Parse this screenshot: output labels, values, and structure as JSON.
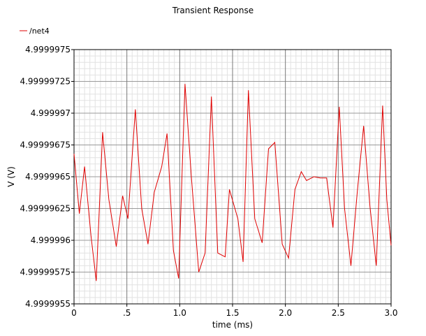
{
  "chart_data": {
    "type": "line",
    "title": "Transient Response",
    "xlabel": "time (ms)",
    "ylabel": "V (V)",
    "xlim": [
      0,
      3.0
    ],
    "ylim": [
      4.9999955,
      4.9999975
    ],
    "grid": true,
    "legend_position": "top-left",
    "x_ticks": [
      {
        "value": 0,
        "label": "0"
      },
      {
        "value": 0.5,
        "label": ".5"
      },
      {
        "value": 1.0,
        "label": "1.0"
      },
      {
        "value": 1.5,
        "label": "1.5"
      },
      {
        "value": 2.0,
        "label": "2.0"
      },
      {
        "value": 2.5,
        "label": "2.5"
      },
      {
        "value": 3.0,
        "label": "3.0"
      }
    ],
    "y_ticks": [
      {
        "value": 4.9999955,
        "label": "4.9999955"
      },
      {
        "value": 4.99999575,
        "label": "4.99999575"
      },
      {
        "value": 4.999996,
        "label": "4.999996"
      },
      {
        "value": 4.99999625,
        "label": "4.99999625"
      },
      {
        "value": 4.9999965,
        "label": "4.9999965"
      },
      {
        "value": 4.99999675,
        "label": "4.99999675"
      },
      {
        "value": 4.999997,
        "label": "4.999997"
      },
      {
        "value": 4.99999725,
        "label": "4.99999725"
      },
      {
        "value": 4.9999975,
        "label": "4.9999975"
      }
    ],
    "series": [
      {
        "name": "/net4",
        "color": "#e00000",
        "x": [
          0,
          0.05,
          0.1,
          0.16,
          0.21,
          0.27,
          0.33,
          0.4,
          0.46,
          0.51,
          0.58,
          0.64,
          0.7,
          0.76,
          0.83,
          0.88,
          0.94,
          0.99,
          1.05,
          1.11,
          1.18,
          1.24,
          1.3,
          1.36,
          1.43,
          1.47,
          1.55,
          1.6,
          1.65,
          1.71,
          1.78,
          1.84,
          1.9,
          1.97,
          2.03,
          2.09,
          2.15,
          2.2,
          2.27,
          2.33,
          2.39,
          2.45,
          2.51,
          2.56,
          2.62,
          2.68,
          2.74,
          2.8,
          2.86,
          2.92,
          2.96,
          3.0
        ],
        "y": [
          4.99999668,
          4.99999621,
          4.99999658,
          4.99999604,
          4.99999568,
          4.99999685,
          4.99999632,
          4.99999595,
          4.99999635,
          4.99999617,
          4.99999703,
          4.99999625,
          4.99999597,
          4.99999638,
          4.99999658,
          4.99999684,
          4.99999592,
          4.9999957,
          4.99999723,
          4.9999965,
          4.99999575,
          4.9999959,
          4.99999713,
          4.9999959,
          4.99999587,
          4.9999964,
          4.99999617,
          4.99999583,
          4.99999718,
          4.99999617,
          4.99999598,
          4.99999672,
          4.99999677,
          4.99999597,
          4.99999586,
          4.9999964,
          4.99999654,
          4.99999647,
          4.9999965,
          4.99999649,
          4.99999649,
          4.9999961,
          4.99999705,
          4.99999625,
          4.9999958,
          4.99999638,
          4.9999969,
          4.99999627,
          4.9999958,
          4.99999706,
          4.99999632,
          4.99999596
        ]
      }
    ]
  }
}
